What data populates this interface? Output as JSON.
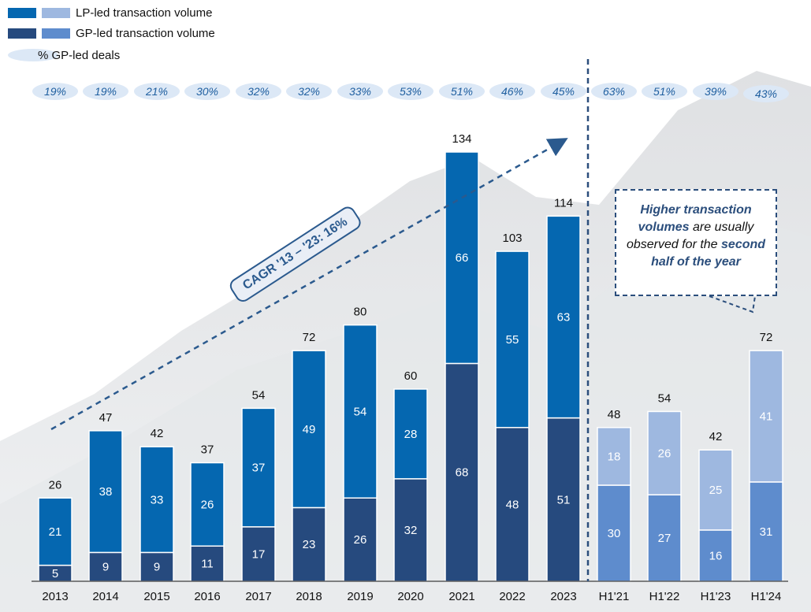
{
  "legend": {
    "lp_label": "LP-led transaction volume",
    "gp_label": "GP-led transaction volume",
    "pct_label": "% GP-led deals"
  },
  "colors": {
    "lp_full": "#0567b0",
    "gp_full": "#264a7e",
    "lp_half": "#9eb8e0",
    "gp_half": "#5e8ccd",
    "pct_fill": "#dce8f6",
    "pct_text": "#1f5fa0",
    "callout_text": "#2b4e7c"
  },
  "cagr": {
    "label": "CAGR '13 – '23: 16%"
  },
  "callout": {
    "b1": "Higher transaction volumes",
    "t1": "are usually observed for the",
    "b2": "second half of the year"
  },
  "chart_data": {
    "type": "bar",
    "stacked": true,
    "categories": [
      "2013",
      "2014",
      "2015",
      "2016",
      "2017",
      "2018",
      "2019",
      "2020",
      "2021",
      "2022",
      "2023",
      "H1'21",
      "H1'22",
      "H1'23",
      "H1'24"
    ],
    "series": [
      {
        "name": "GP-led transaction volume",
        "values": [
          5,
          9,
          9,
          11,
          17,
          23,
          26,
          32,
          68,
          48,
          51,
          30,
          27,
          16,
          31
        ]
      },
      {
        "name": "LP-led transaction volume",
        "values": [
          21,
          38,
          33,
          26,
          37,
          49,
          54,
          28,
          66,
          55,
          63,
          18,
          26,
          25,
          41
        ]
      }
    ],
    "totals": [
      26,
      47,
      42,
      37,
      54,
      72,
      80,
      60,
      134,
      103,
      114,
      48,
      54,
      42,
      72
    ],
    "pct_gp_led": [
      "19%",
      "19%",
      "21%",
      "30%",
      "32%",
      "32%",
      "33%",
      "53%",
      "51%",
      "46%",
      "45%",
      "63%",
      "51%",
      "39%",
      "43%"
    ],
    "ylim": [
      0,
      134
    ]
  }
}
